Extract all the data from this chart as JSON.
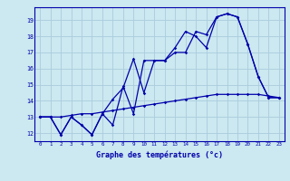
{
  "xlabel": "Graphe des températures (°c)",
  "bg_color": "#cce8f0",
  "grid_color": "#aaccdd",
  "line_color": "#0000aa",
  "xlim": [
    -0.5,
    23.5
  ],
  "ylim": [
    11.5,
    19.8
  ],
  "yticks": [
    12,
    13,
    14,
    15,
    16,
    17,
    18,
    19
  ],
  "xticks": [
    0,
    1,
    2,
    3,
    4,
    5,
    6,
    7,
    8,
    9,
    10,
    11,
    12,
    13,
    14,
    15,
    16,
    17,
    18,
    19,
    20,
    21,
    22,
    23
  ],
  "series1_x": [
    0,
    1,
    2,
    3,
    4,
    5,
    6,
    7,
    8,
    9,
    10,
    11,
    12,
    13,
    14,
    15,
    16,
    17,
    18,
    19,
    20,
    21,
    22,
    23
  ],
  "series1_y": [
    13.0,
    13.0,
    11.9,
    13.0,
    12.5,
    11.9,
    13.2,
    14.1,
    14.8,
    16.6,
    14.5,
    16.5,
    16.5,
    17.3,
    18.3,
    18.0,
    17.3,
    19.2,
    19.4,
    19.2,
    17.5,
    15.5,
    14.2,
    14.2
  ],
  "series2_x": [
    0,
    1,
    2,
    3,
    4,
    5,
    6,
    7,
    8,
    9,
    10,
    11,
    12,
    13,
    14,
    15,
    16,
    17,
    18,
    19,
    20,
    21,
    22,
    23
  ],
  "series2_y": [
    13.0,
    13.0,
    11.9,
    13.0,
    12.5,
    11.9,
    13.2,
    12.5,
    14.9,
    13.2,
    16.5,
    16.5,
    16.5,
    17.0,
    17.0,
    18.3,
    18.1,
    19.2,
    19.4,
    19.2,
    17.5,
    15.5,
    14.2,
    14.2
  ],
  "series3_x": [
    0,
    1,
    2,
    3,
    4,
    5,
    6,
    7,
    8,
    9,
    10,
    11,
    12,
    13,
    14,
    15,
    16,
    17,
    18,
    19,
    20,
    21,
    22,
    23
  ],
  "series3_y": [
    13.0,
    13.0,
    13.0,
    13.1,
    13.2,
    13.2,
    13.3,
    13.4,
    13.5,
    13.6,
    13.7,
    13.8,
    13.9,
    14.0,
    14.1,
    14.2,
    14.3,
    14.4,
    14.4,
    14.4,
    14.4,
    14.4,
    14.3,
    14.2
  ]
}
